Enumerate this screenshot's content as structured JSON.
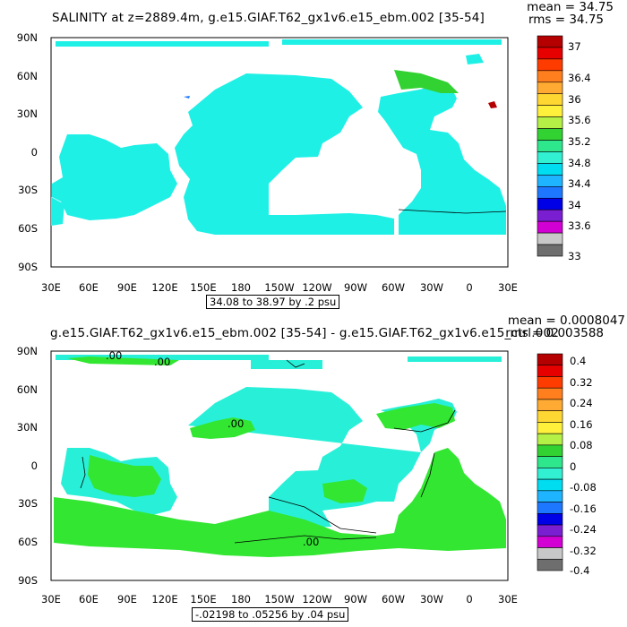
{
  "panel_top": {
    "title": "SALINITY at z=2889.4m, g.e15.GIAF.T62_gx1v6.e15_ebm.002 [35-54]",
    "mean": "mean = 34.75",
    "rms": "rms = 34.75",
    "range": "34.08 to 38.97 by .2 psu",
    "y_ticks": [
      "90N",
      "60N",
      "30N",
      "0",
      "30S",
      "60S",
      "90S"
    ],
    "x_ticks": [
      "30E",
      "60E",
      "90E",
      "120E",
      "150E",
      "180",
      "150W",
      "120W",
      "90W",
      "60W",
      "30W",
      "0",
      "30E"
    ],
    "colorbar": {
      "labels": [
        "37",
        "36.4",
        "36",
        "35.6",
        "35.2",
        "34.8",
        "34.4",
        "34",
        "33.6",
        "33"
      ],
      "colors": [
        "#b40000",
        "#e60000",
        "#ff3c00",
        "#ff7f1e",
        "#ffaa32",
        "#ffd732",
        "#fff03c",
        "#b4f046",
        "#32d232",
        "#2ee68c",
        "#32f0d2",
        "#00dcf0",
        "#1eb4ff",
        "#1e78ff",
        "#0000e6",
        "#7a1ed2",
        "#d200d2",
        "#c8c8c8",
        "#6e6e6e"
      ]
    }
  },
  "panel_bottom": {
    "title": "g.e15.GIAF.T62_gx1v6.e15_ebm.002 [35-54] - g.e15.GIAF.T62_gx1v6.e15_ctrl.002",
    "mean": "mean = 0.0008047",
    "rms": "rms = 0.003588",
    "range": "-.02198 to .05256 by .04 psu",
    "contour_label": ".00",
    "y_ticks": [
      "90N",
      "60N",
      "30N",
      "0",
      "30S",
      "60S",
      "90S"
    ],
    "x_ticks": [
      "30E",
      "60E",
      "90E",
      "120E",
      "150E",
      "180",
      "150W",
      "120W",
      "90W",
      "60W",
      "30W",
      "0",
      "30E"
    ],
    "colorbar": {
      "labels": [
        "0.4",
        "0.32",
        "0.24",
        "0.16",
        "0.08",
        "0",
        "-0.08",
        "-0.16",
        "-0.24",
        "-0.32",
        "-0.4"
      ],
      "colors": [
        "#b40000",
        "#e60000",
        "#ff3c00",
        "#ff7f1e",
        "#ffaa32",
        "#ffd732",
        "#fff03c",
        "#b4f046",
        "#32d232",
        "#2ee68c",
        "#32f0d2",
        "#00dcf0",
        "#1eb4ff",
        "#1e78ff",
        "#0000e6",
        "#7a1ed2",
        "#d200d2",
        "#c8c8c8",
        "#6e6e6e"
      ]
    }
  },
  "colors": {
    "ocean_top": "#1ef0e6",
    "ocean_bottom_green": "#32e632",
    "ocean_bottom_cyan": "#28f0d8",
    "contour": "#000000"
  }
}
